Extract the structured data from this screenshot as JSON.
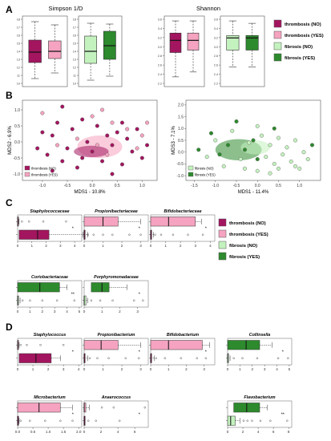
{
  "colors": {
    "thrombosis_no": "#a3155f",
    "thrombosis_yes": "#f5a3c0",
    "fibrosis_no": "#c4f2bf",
    "fibrosis_yes": "#2d8a2d"
  },
  "legend": [
    {
      "label": "thrombosis (NO)",
      "color": "#a3155f"
    },
    {
      "label": "thrombosis (YES)",
      "color": "#f5a3c0"
    },
    {
      "label": "fibrosis (NO)",
      "color": "#c4f2bf"
    },
    {
      "label": "fibrosis (YES)",
      "color": "#2d8a2d"
    }
  ],
  "panels": {
    "A": "A",
    "B": "B",
    "C": "C",
    "D": "D"
  },
  "chart_data": [
    {
      "type": "box",
      "panel": "A",
      "title": "Simpson 1/D",
      "yticks": [
        "10",
        "11",
        "12",
        "13",
        "14",
        "15",
        "16",
        "17",
        "18"
      ],
      "groups": [
        {
          "name": "thrombosis (NO)",
          "q": [
            10.5,
            12.5,
            13.8,
            15.3,
            17.6
          ]
        },
        {
          "name": "thrombosis (YES)",
          "q": [
            11.2,
            13.0,
            13.9,
            15.2,
            17.2
          ]
        },
        {
          "name": "fibrosis (NO)",
          "q": [
            10.3,
            12.4,
            13.9,
            15.8,
            17.4
          ]
        },
        {
          "name": "fibrosis (YES)",
          "q": [
            10.8,
            12.9,
            14.6,
            16.4,
            17.3
          ]
        }
      ]
    },
    {
      "type": "box",
      "panel": "A",
      "title": "Shannon",
      "yticks": [
        "2.2",
        "2.4",
        "2.6",
        "2.8",
        "3.0",
        "3.2",
        "3.4",
        "3.6"
      ],
      "groups": [
        {
          "name": "thrombosis (NO)",
          "q": [
            2.4,
            2.9,
            3.15,
            3.3,
            3.55
          ]
        },
        {
          "name": "thrombosis (YES)",
          "q": [
            2.5,
            2.95,
            3.15,
            3.3,
            3.55
          ]
        },
        {
          "name": "fibrosis (NO)",
          "q": [
            2.6,
            2.95,
            3.2,
            3.25,
            3.55
          ]
        },
        {
          "name": "fibrosis (YES)",
          "q": [
            2.6,
            2.95,
            3.2,
            3.25,
            3.5
          ]
        }
      ]
    },
    {
      "type": "scatter",
      "panel": "B",
      "xlabel": "MDS1 - 10.8%",
      "ylabel": "MDS2 - 6.9%",
      "xlim": [
        -1.4,
        1.3
      ],
      "ylim": [
        -1.2,
        1.3
      ],
      "xticks": [
        "-1.0",
        "-0.5",
        "0.0",
        "0.5",
        "1.0"
      ],
      "yticks": [
        "-1.0",
        "-0.5",
        "0.0",
        "0.5",
        "1.0"
      ],
      "legend": [
        "thrombosis (NO)",
        "thrombosis (YES)"
      ],
      "ellipses": [
        {
          "name": "thrombosis (YES)",
          "cx": 0.15,
          "cy": -0.15,
          "rx": 0.45,
          "ry": 0.35
        },
        {
          "name": "thrombosis (NO)",
          "cx": -0.02,
          "cy": -0.3,
          "rx": 0.35,
          "ry": 0.18
        }
      ],
      "series": [
        {
          "name": "thrombosis (NO)",
          "points": [
            [
              -1.1,
              -0.2
            ],
            [
              -1.0,
              0.3
            ],
            [
              -0.9,
              -0.4
            ],
            [
              -0.8,
              0.2
            ],
            [
              -0.7,
              0.6
            ],
            [
              -0.6,
              -0.6
            ],
            [
              -0.5,
              -0.2
            ],
            [
              -0.4,
              0.4
            ],
            [
              -0.3,
              -0.8
            ],
            [
              -0.2,
              0.7
            ],
            [
              -0.1,
              0.0
            ],
            [
              0.0,
              -0.3
            ],
            [
              0.1,
              0.5
            ],
            [
              0.2,
              -0.6
            ],
            [
              0.3,
              0.2
            ],
            [
              0.4,
              -0.1
            ],
            [
              0.5,
              0.3
            ],
            [
              0.6,
              -0.7
            ],
            [
              0.7,
              0.1
            ],
            [
              0.8,
              -0.3
            ],
            [
              0.9,
              0.4
            ],
            [
              1.0,
              -0.5
            ],
            [
              1.1,
              -0.1
            ],
            [
              -0.8,
              -0.9
            ],
            [
              -0.6,
              1.1
            ],
            [
              0.4,
              -1.0
            ],
            [
              -0.2,
              -0.5
            ],
            [
              0.6,
              0.6
            ]
          ]
        },
        {
          "name": "thrombosis (YES)",
          "points": [
            [
              -1.0,
              0.9
            ],
            [
              -0.7,
              -0.1
            ],
            [
              -0.3,
              0.1
            ],
            [
              0.0,
              0.8
            ],
            [
              0.1,
              -0.1
            ],
            [
              0.3,
              -0.4
            ],
            [
              0.4,
              0.6
            ],
            [
              0.7,
              0.4
            ],
            [
              0.9,
              -0.2
            ],
            [
              1.0,
              0.2
            ],
            [
              1.1,
              0.6
            ],
            [
              0.2,
              1.0
            ]
          ]
        }
      ]
    },
    {
      "type": "scatter",
      "panel": "B",
      "xlabel": "MDS1 - 11.4%",
      "ylabel": "MDS3 - 7.1%",
      "xlim": [
        -1.7,
        1.5
      ],
      "ylim": [
        -1.2,
        2.2
      ],
      "xticks": [
        "-1.5",
        "-1.0",
        "-0.5",
        "0.0",
        "0.5",
        "1.0"
      ],
      "yticks": [
        "-1.0",
        "-0.5",
        "0.0",
        "0.5",
        "1.0",
        "1.5",
        "2.0"
      ],
      "legend": [
        "fibrosis (NO)",
        "fibrosis (YES)"
      ],
      "ellipses": [
        {
          "name": "fibrosis (YES)",
          "cx": -0.45,
          "cy": 0.1,
          "rx": 0.55,
          "ry": 0.45
        },
        {
          "name": "fibrosis (NO)",
          "cx": -0.05,
          "cy": 0.2,
          "rx": 0.35,
          "ry": 0.3
        }
      ],
      "series": [
        {
          "name": "fibrosis (NO)",
          "points": [
            [
              -1.2,
              -0.2
            ],
            [
              -1.0,
              0.5
            ],
            [
              -0.8,
              -0.6
            ],
            [
              -0.6,
              0.9
            ],
            [
              -0.4,
              -0.3
            ],
            [
              -0.2,
              0.4
            ],
            [
              0.0,
              -0.8
            ],
            [
              0.1,
              0.7
            ],
            [
              0.2,
              -0.2
            ],
            [
              0.3,
              0.3
            ],
            [
              0.4,
              -0.5
            ],
            [
              0.5,
              0.6
            ],
            [
              0.6,
              -0.1
            ],
            [
              0.7,
              0.2
            ],
            [
              0.8,
              -0.4
            ],
            [
              0.9,
              0.5
            ],
            [
              1.0,
              -0.7
            ],
            [
              1.1,
              0.0
            ],
            [
              1.2,
              -0.3
            ],
            [
              0.9,
              -0.6
            ],
            [
              0.5,
              -0.7
            ],
            [
              -0.3,
              -0.7
            ],
            [
              0.0,
              1.1
            ],
            [
              0.3,
              -0.9
            ]
          ]
        },
        {
          "name": "fibrosis (YES)",
          "points": [
            [
              -1.4,
              0.1
            ],
            [
              -1.1,
              0.8
            ],
            [
              -0.9,
              -0.1
            ],
            [
              -0.7,
              0.3
            ],
            [
              -0.5,
              1.3
            ],
            [
              -0.3,
              0.1
            ],
            [
              -0.1,
              0.5
            ],
            [
              0.0,
              -0.3
            ],
            [
              0.4,
              1.0
            ],
            [
              1.3,
              0.3
            ]
          ]
        }
      ]
    },
    {
      "type": "box",
      "panel": "C",
      "title": "Staphylococcaceae",
      "xticks": [
        "0",
        "1",
        "2",
        "3",
        "4"
      ],
      "xmax": 4.5,
      "groups": [
        {
          "name": "thrombosis (YES)",
          "q": [
            0,
            0,
            0,
            0,
            0.1
          ],
          "outliers": [
            0.3,
            0.8,
            1.8,
            3.4
          ]
        },
        {
          "name": "thrombosis (NO)",
          "q": [
            0,
            0.1,
            1.4,
            2.2,
            4.6
          ],
          "outliers": []
        }
      ],
      "annotation": "*"
    },
    {
      "type": "box",
      "panel": "C",
      "title": "Propionibacteriaceae",
      "xticks": [
        "0",
        "1",
        "2",
        "3"
      ],
      "xmax": 3.4,
      "groups": [
        {
          "name": "thrombosis (YES)",
          "q": [
            0,
            0,
            1.0,
            1.8,
            3.0
          ],
          "outliers": []
        },
        {
          "name": "thrombosis (NO)",
          "q": [
            0,
            0,
            0,
            0,
            0.2
          ],
          "outliers": [
            0.2,
            0.5,
            1.0,
            1.5,
            2.4,
            3.0
          ]
        }
      ],
      "annotation": "*"
    },
    {
      "type": "box",
      "panel": "C",
      "title": "Bifidobacteriaceae",
      "xticks": [
        "0",
        "1",
        "2",
        "3",
        "4"
      ],
      "xmax": 4.3,
      "groups": [
        {
          "name": "thrombosis (YES)",
          "q": [
            0,
            0,
            1.2,
            3.0,
            3.4
          ],
          "outliers": []
        },
        {
          "name": "thrombosis (NO)",
          "q": [
            0,
            0,
            0,
            0,
            0.2
          ],
          "outliers": [
            0.3,
            0.7,
            1.5,
            2.5,
            3.5
          ]
        }
      ],
      "annotation": "*"
    },
    {
      "type": "box",
      "panel": "C",
      "title": "Coriobacteriaceae",
      "xticks": [
        "0",
        "1",
        "2",
        "3",
        "4",
        "5"
      ],
      "xmax": 5.2,
      "groups": [
        {
          "name": "fibrosis (YES)",
          "q": [
            0,
            0,
            1.8,
            3.4,
            4.0
          ],
          "outliers": []
        },
        {
          "name": "fibrosis (NO)",
          "q": [
            0,
            0,
            0,
            0,
            0.2
          ],
          "outliers": [
            0.4,
            1.0,
            2.0,
            3.2,
            4.6
          ]
        }
      ],
      "annotation": "**"
    },
    {
      "type": "box",
      "panel": "C",
      "title": "Porphyromonadaceae",
      "xticks": [
        "0",
        "1",
        "2",
        "3"
      ],
      "xmax": 3.6,
      "groups": [
        {
          "name": "fibrosis (YES)",
          "q": [
            0.1,
            0.4,
            1.0,
            1.4,
            2.4
          ],
          "outliers": []
        },
        {
          "name": "fibrosis (NO)",
          "q": [
            0,
            0,
            0,
            0.1,
            0.2
          ],
          "outliers": [
            0.4,
            0.9,
            1.6,
            2.8,
            3.3
          ]
        }
      ],
      "annotation": "*"
    },
    {
      "type": "box",
      "panel": "D",
      "title": "Staphylococcus",
      "xticks": [
        "0",
        "1",
        "2",
        "3",
        "4"
      ],
      "xmax": 4.2,
      "groups": [
        {
          "name": "thrombosis (YES)",
          "q": [
            0,
            0,
            0,
            0,
            0.1
          ],
          "outliers": [
            0.2,
            0.6,
            1.5,
            3.0
          ]
        },
        {
          "name": "thrombosis (NO)",
          "q": [
            0,
            0.1,
            1.2,
            2.2,
            2.8
          ],
          "outliers": []
        }
      ],
      "annotation": "*"
    },
    {
      "type": "box",
      "panel": "D",
      "title": "Propionibacterium",
      "xticks": [
        "0",
        "1",
        "2",
        "3"
      ],
      "xmax": 3.4,
      "groups": [
        {
          "name": "thrombosis (YES)",
          "q": [
            0,
            0,
            0.9,
            1.8,
            3.0
          ],
          "outliers": []
        },
        {
          "name": "thrombosis (NO)",
          "q": [
            0,
            0,
            0,
            0,
            0.2
          ],
          "outliers": [
            0.3,
            0.7,
            1.3,
            2.2,
            2.9
          ]
        }
      ],
      "annotation": "*"
    },
    {
      "type": "box",
      "panel": "D",
      "title": "Bifidobacterium",
      "xticks": [
        "0",
        "1",
        "2",
        "3"
      ],
      "xmax": 3.6,
      "groups": [
        {
          "name": "thrombosis (YES)",
          "q": [
            0,
            0,
            1.0,
            2.9,
            3.3
          ],
          "outliers": []
        },
        {
          "name": "thrombosis (NO)",
          "q": [
            0,
            0,
            0,
            0,
            0.2
          ],
          "outliers": [
            0.3,
            0.8,
            1.7,
            2.6,
            3.1
          ]
        }
      ],
      "annotation": "*"
    },
    {
      "type": "box",
      "panel": "D",
      "title": "Collinsella",
      "xticks": [
        "0",
        "1",
        "2",
        "3",
        "4",
        "5"
      ],
      "xmax": 5.2,
      "groups": [
        {
          "name": "fibrosis (YES)",
          "q": [
            0,
            0,
            1.5,
            2.6,
            3.6
          ],
          "outliers": []
        },
        {
          "name": "fibrosis (NO)",
          "q": [
            0,
            0,
            0,
            0,
            0.2
          ],
          "outliers": [
            0.5,
            1.2,
            2.4,
            4.1,
            4.9
          ]
        }
      ],
      "annotation": "*"
    },
    {
      "type": "box",
      "panel": "D",
      "title": "Microbacterium",
      "xticks": [
        "0.0",
        "0.5",
        "1.0",
        "1.5",
        "2.0"
      ],
      "xmax": 2.1,
      "groups": [
        {
          "name": "thrombosis (YES)",
          "q": [
            0,
            0,
            0.7,
            1.4,
            1.8
          ],
          "outliers": []
        },
        {
          "name": "thrombosis (NO)",
          "q": [
            0,
            0,
            0,
            0,
            0.05
          ],
          "outliers": [
            0.1,
            0.4,
            0.9,
            1.4,
            1.8
          ]
        }
      ],
      "annotation": "*"
    },
    {
      "type": "box",
      "panel": "D",
      "title": "Anaerococcus",
      "xticks": [
        "0",
        "2",
        "4",
        "6"
      ],
      "xmax": 7.6,
      "groups": [
        {
          "name": "thrombosis (YES)",
          "q": [
            0,
            0,
            0,
            0.2,
            0.6
          ],
          "outliers": [
            2.1,
            3.5,
            7.2
          ]
        },
        {
          "name": "thrombosis (NO)",
          "q": [
            0,
            0,
            0,
            0,
            0.1
          ],
          "outliers": [
            0.5,
            1.4,
            4.2
          ]
        }
      ],
      "annotation": "*"
    },
    {
      "type": "box",
      "panel": "D",
      "title": "Flavobacterium",
      "xticks": [
        "0",
        "2",
        "4",
        "6",
        "8"
      ],
      "xmax": 8.4,
      "groups": [
        {
          "name": "fibrosis (YES)",
          "q": [
            0,
            0.8,
            2.5,
            4.2,
            5.2
          ],
          "outliers": []
        },
        {
          "name": "fibrosis (NO)",
          "q": [
            0,
            0,
            0.4,
            1.0,
            1.6
          ],
          "outliers": [
            2.1,
            2.6,
            3.2,
            4.3,
            5.6,
            7.8
          ]
        }
      ],
      "annotation": "**"
    }
  ]
}
